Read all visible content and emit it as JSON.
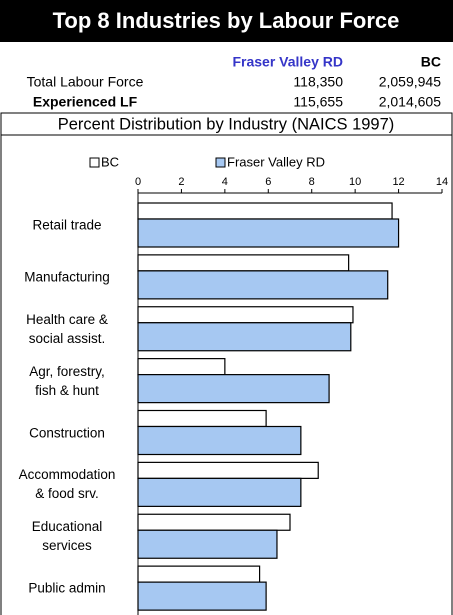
{
  "header": {
    "title": "Top 8 Industries by Labour Force"
  },
  "table": {
    "columns": [
      "Fraser Valley RD",
      "BC"
    ],
    "rows": [
      [
        "Total Labour Force",
        "118,350",
        "2,059,945"
      ],
      [
        "Experienced LF",
        "115,655",
        "2,014,605"
      ]
    ]
  },
  "chart_data": {
    "type": "bar",
    "orientation": "horizontal",
    "title": "Percent Distribution by Industry (NAICS 1997)",
    "categories": [
      "Retail trade",
      "Manufacturing",
      "Health care &\nsocial assist.",
      "Agr, forestry,\nfish & hunt",
      "Construction",
      "Accommodation\n& food srv.",
      "Educational\nservices",
      "Public admin"
    ],
    "series": [
      {
        "name": "BC",
        "color": "#ffffff",
        "values": [
          11.7,
          9.7,
          9.9,
          4.0,
          5.9,
          8.3,
          7.0,
          5.6
        ]
      },
      {
        "name": "Fraser Valley RD",
        "color": "#a6c8f2",
        "values": [
          12.0,
          11.5,
          9.8,
          8.8,
          7.5,
          7.5,
          6.4,
          5.9
        ]
      }
    ],
    "xlim": [
      0,
      14
    ],
    "xticks": [
      0,
      2,
      4,
      6,
      8,
      10,
      12,
      14
    ]
  }
}
